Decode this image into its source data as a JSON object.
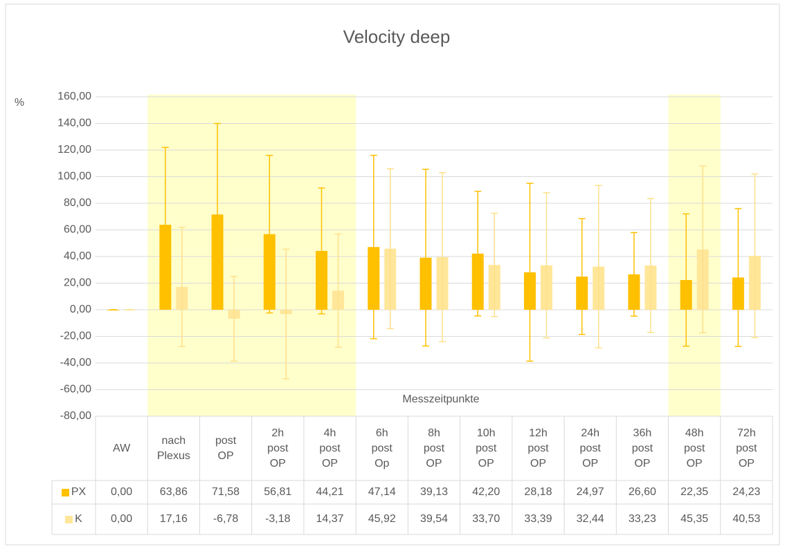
{
  "chart_data": {
    "type": "bar",
    "title": "Velocity deep",
    "y_label": "%",
    "x_label": "Messzeitpunkte",
    "categories": [
      "AW",
      "nach Plexus",
      "post OP",
      "2h post OP",
      "4h post OP",
      "6h post Op",
      "8h post OP",
      "10h post OP",
      "12h post OP",
      "24h post OP",
      "36h post OP",
      "48h post OP",
      "72h post OP"
    ],
    "series": [
      {
        "name": "PX",
        "color": "#ffc000",
        "values": [
          0,
          63.86,
          71.58,
          56.81,
          44.21,
          47.14,
          39.13,
          42.2,
          28.18,
          24.97,
          26.6,
          22.35,
          24.23
        ],
        "value_labels": [
          "0,00",
          "63,86",
          "71,58",
          "56,81",
          "44,21",
          "47,14",
          "39,13",
          "42,20",
          "28,18",
          "24,97",
          "26,60",
          "22,35",
          "24,23"
        ],
        "errors": [
          0,
          58.1,
          68.4,
          59.2,
          47.3,
          68.9,
          66.4,
          46.8,
          66.8,
          43.5,
          31.4,
          49.7,
          51.8
        ]
      },
      {
        "name": "K",
        "color": "#ffe699",
        "values": [
          0,
          17.16,
          -6.78,
          -3.18,
          14.37,
          45.92,
          39.54,
          33.7,
          33.39,
          32.44,
          33.23,
          45.35,
          40.53
        ],
        "value_labels": [
          "0,00",
          "17,16",
          "-6,78",
          "-3,18",
          "14,37",
          "45,92",
          "39,54",
          "33,70",
          "33,39",
          "32,44",
          "33,23",
          "45,35",
          "40,53"
        ],
        "errors": [
          0,
          44.8,
          31.8,
          48.7,
          42.6,
          60.1,
          63.5,
          38.8,
          54.6,
          61,
          50.3,
          62.6,
          61.5
        ]
      }
    ],
    "ylim": [
      -80,
      160
    ],
    "yticks": [
      {
        "value": -80,
        "label": "-80,00"
      },
      {
        "value": -60,
        "label": "-60,00"
      },
      {
        "value": -40,
        "label": "-40,00"
      },
      {
        "value": -20,
        "label": "-20,00"
      },
      {
        "value": 0,
        "label": "0,00"
      },
      {
        "value": 20,
        "label": "20,00"
      },
      {
        "value": 40,
        "label": "40,00"
      },
      {
        "value": 60,
        "label": "60,00"
      },
      {
        "value": 80,
        "label": "80,00"
      },
      {
        "value": 100,
        "label": "100,00"
      },
      {
        "value": 120,
        "label": "120,00"
      },
      {
        "value": 140,
        "label": "140,00"
      },
      {
        "value": 160,
        "label": "160,00"
      }
    ],
    "grid": true,
    "data_table": true,
    "highlights": [
      [
        1,
        4
      ],
      [
        11,
        11
      ]
    ],
    "highlight_color": "#ffffcc"
  }
}
